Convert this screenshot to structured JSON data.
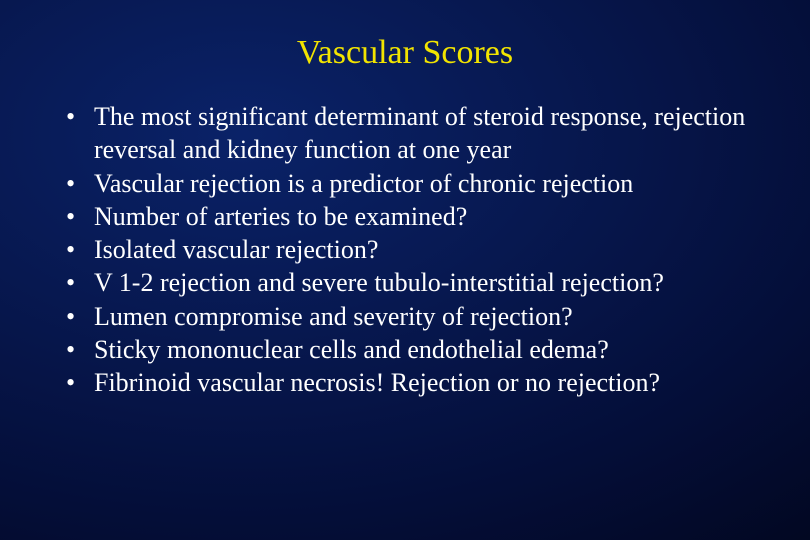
{
  "slide": {
    "title": "Vascular Scores",
    "title_color": "#f2e400",
    "text_color": "#ffffff",
    "background_gradient": {
      "inner": "#0a2268",
      "mid1": "#071850",
      "mid2": "#040e38",
      "outer": "#010310"
    },
    "title_fontsize": 34,
    "body_fontsize": 26,
    "font_family": "Times New Roman",
    "bullets": [
      "The most significant determinant of steroid response, rejection reversal and kidney function at one year",
      "Vascular rejection is a predictor of chronic rejection",
      "Number of arteries to be examined?",
      "Isolated vascular rejection?",
      "V 1-2 rejection and severe tubulo-interstitial rejection?",
      "Lumen compromise and severity of rejection?",
      "Sticky mononuclear cells and endothelial edema?",
      "Fibrinoid vascular necrosis! Rejection or no rejection?"
    ]
  }
}
